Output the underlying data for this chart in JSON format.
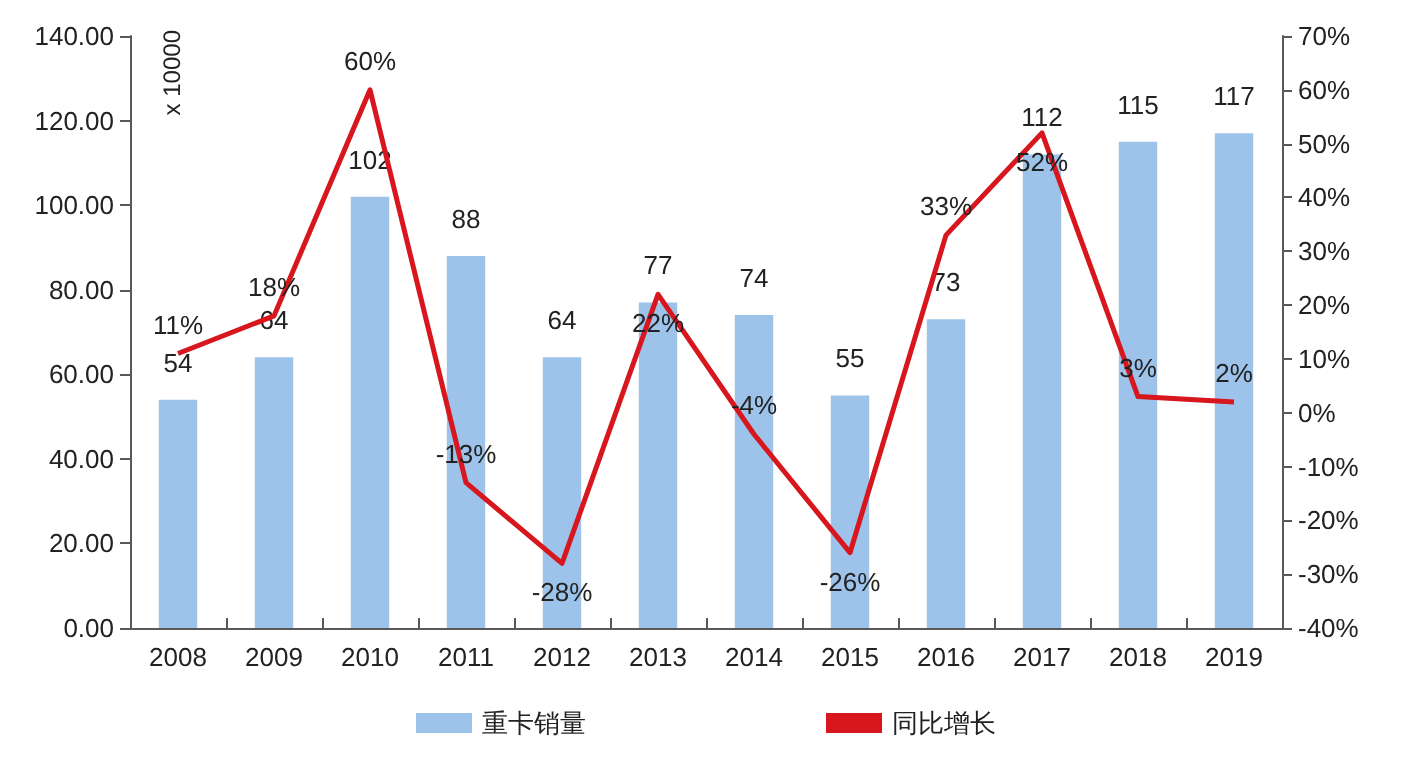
{
  "chart_data": {
    "type": "bar",
    "categories": [
      "2008",
      "2009",
      "2010",
      "2011",
      "2012",
      "2013",
      "2014",
      "2015",
      "2016",
      "2017",
      "2018",
      "2019"
    ],
    "series": [
      {
        "name": "重卡销量",
        "color": "#9dc3ea",
        "values": [
          54,
          64,
          102,
          88,
          64,
          77,
          74,
          55,
          73,
          112,
          115,
          117
        ],
        "value_labels": [
          "54",
          "64",
          "102",
          "88",
          "64",
          "77",
          "74",
          "55",
          "73",
          "112",
          "115",
          "117"
        ]
      },
      {
        "name": "同比增长",
        "type": "line",
        "axis": "y2",
        "color": "#d7161e",
        "values": [
          11,
          18,
          60,
          -13,
          -28,
          22,
          -4,
          -26,
          33,
          52,
          3,
          2
        ],
        "value_labels": [
          "11%",
          "18%",
          "60%",
          "-13%",
          "-28%",
          "22%",
          "-4%",
          "-26%",
          "33%",
          "52%",
          "3%",
          "2%"
        ]
      }
    ],
    "annotations": [
      "x 10000"
    ],
    "ylim": [
      0,
      140
    ],
    "yticks": [
      {
        "value": 0,
        "label": "0.00"
      },
      {
        "value": 20,
        "label": "20.00"
      },
      {
        "value": 40,
        "label": "40.00"
      },
      {
        "value": 60,
        "label": "60.00"
      },
      {
        "value": 80,
        "label": "80.00"
      },
      {
        "value": 100,
        "label": "100.00"
      },
      {
        "value": 120,
        "label": "120.00"
      },
      {
        "value": 140,
        "label": "140.00"
      }
    ],
    "y2lim": [
      -40,
      70
    ],
    "y2ticks": [
      {
        "value": -40,
        "label": "-40%"
      },
      {
        "value": -30,
        "label": "-30%"
      },
      {
        "value": -20,
        "label": "-20%"
      },
      {
        "value": -10,
        "label": "-10%"
      },
      {
        "value": 0,
        "label": "0%"
      },
      {
        "value": 10,
        "label": "10%"
      },
      {
        "value": 20,
        "label": "20%"
      },
      {
        "value": 30,
        "label": "30%"
      },
      {
        "value": 40,
        "label": "40%"
      },
      {
        "value": 50,
        "label": "50%"
      },
      {
        "value": 60,
        "label": "60%"
      },
      {
        "value": 70,
        "label": "70%"
      }
    ],
    "grid": false,
    "legend": "bottom",
    "marker": "none",
    "line_style": "solid"
  }
}
